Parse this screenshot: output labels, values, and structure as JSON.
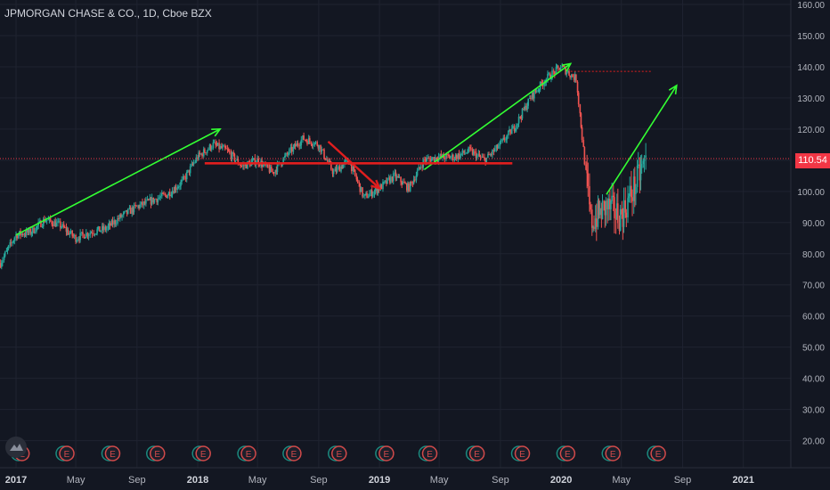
{
  "header": {
    "title": "JPMORGAN CHASE & CO., 1D, Cboe BZX"
  },
  "colors": {
    "background": "#131722",
    "grid": "#1f2330",
    "axis_text": "#b2b5be",
    "candle_up": "#26a69a",
    "candle_down": "#ef5350",
    "green_arrow": "#33ff33",
    "red_drawing": "#e01e1e",
    "price_line": "#f23645",
    "event_circle": "#d24a4a"
  },
  "price_tag": "110.54",
  "event_marker_letter": "E",
  "chart_data": {
    "type": "candlestick",
    "x_axis": {
      "ticks": [
        "2017",
        "May",
        "Sep",
        "2018",
        "May",
        "Sep",
        "2019",
        "May",
        "Sep",
        "2020",
        "May",
        "Sep",
        "2021"
      ],
      "range": [
        "2017-01-01",
        "2021-04-01"
      ]
    },
    "y_axis": {
      "range": [
        13,
        160
      ],
      "ticks": [
        "20.00",
        "30.00",
        "40.00",
        "50.00",
        "60.00",
        "70.00",
        "80.00",
        "90.00",
        "100.00",
        "110.00",
        "120.00",
        "130.00",
        "140.00",
        "150.00",
        "160.00"
      ]
    },
    "series": [
      {
        "values": [
          [
            "2016-12-01",
            77
          ],
          [
            "2017-01-01",
            86
          ],
          [
            "2017-02-01",
            87
          ],
          [
            "2017-03-01",
            91
          ],
          [
            "2017-04-01",
            89
          ],
          [
            "2017-05-01",
            85
          ],
          [
            "2017-06-01",
            87
          ],
          [
            "2017-07-01",
            88
          ],
          [
            "2017-08-01",
            92
          ],
          [
            "2017-09-01",
            95
          ],
          [
            "2017-10-01",
            97
          ],
          [
            "2017-11-01",
            99
          ],
          [
            "2017-12-01",
            103
          ],
          [
            "2018-01-01",
            111
          ],
          [
            "2018-02-01",
            115
          ],
          [
            "2018-03-01",
            113
          ],
          [
            "2018-04-01",
            108
          ],
          [
            "2018-05-01",
            110
          ],
          [
            "2018-06-01",
            106
          ],
          [
            "2018-07-01",
            112
          ],
          [
            "2018-08-01",
            117
          ],
          [
            "2018-09-01",
            115
          ],
          [
            "2018-10-01",
            106
          ],
          [
            "2018-11-01",
            110
          ],
          [
            "2018-12-01",
            98
          ],
          [
            "2019-01-01",
            101
          ],
          [
            "2019-02-01",
            105
          ],
          [
            "2019-03-01",
            101
          ],
          [
            "2019-04-01",
            110
          ],
          [
            "2019-05-01",
            111
          ],
          [
            "2019-06-01",
            111
          ],
          [
            "2019-07-01",
            113
          ],
          [
            "2019-08-01",
            110
          ],
          [
            "2019-09-01",
            115
          ],
          [
            "2019-10-01",
            121
          ],
          [
            "2019-11-01",
            130
          ],
          [
            "2019-12-01",
            136
          ],
          [
            "2020-01-01",
            140
          ],
          [
            "2020-02-01",
            136
          ],
          [
            "2020-03-01",
            90
          ],
          [
            "2020-04-01",
            95
          ],
          [
            "2020-05-01",
            92
          ],
          [
            "2020-06-01",
            103
          ],
          [
            "2020-06-20",
            110.54
          ]
        ]
      }
    ],
    "current_price": 110.54,
    "event_markers": [
      "2017-01-13",
      "2017-04-13",
      "2017-07-14",
      "2017-10-12",
      "2018-01-12",
      "2018-04-13",
      "2018-07-13",
      "2018-10-12",
      "2019-01-15",
      "2019-04-12",
      "2019-07-16",
      "2019-10-15",
      "2020-01-14",
      "2020-04-14",
      "2020-07-14"
    ],
    "annotations": [
      {
        "type": "arrow",
        "color": "green",
        "from": [
          "2017-01-01",
          86
        ],
        "to": [
          "2018-02-15",
          120
        ]
      },
      {
        "type": "arrow",
        "color": "green",
        "from": [
          "2019-04-01",
          107
        ],
        "to": [
          "2020-01-20",
          141
        ]
      },
      {
        "type": "arrow",
        "color": "green",
        "from": [
          "2020-04-01",
          99
        ],
        "to": [
          "2020-08-20",
          134
        ]
      },
      {
        "type": "hline",
        "color": "red",
        "y": 109,
        "from": "2018-01-15",
        "to": "2019-09-25"
      },
      {
        "type": "arrow",
        "color": "red",
        "from": [
          "2018-09-20",
          116
        ],
        "to": [
          "2019-01-01",
          101
        ]
      },
      {
        "type": "dotted_hline",
        "color": "red",
        "y": 138.5,
        "from": "2020-01-20",
        "to": "2020-06-30"
      }
    ]
  }
}
